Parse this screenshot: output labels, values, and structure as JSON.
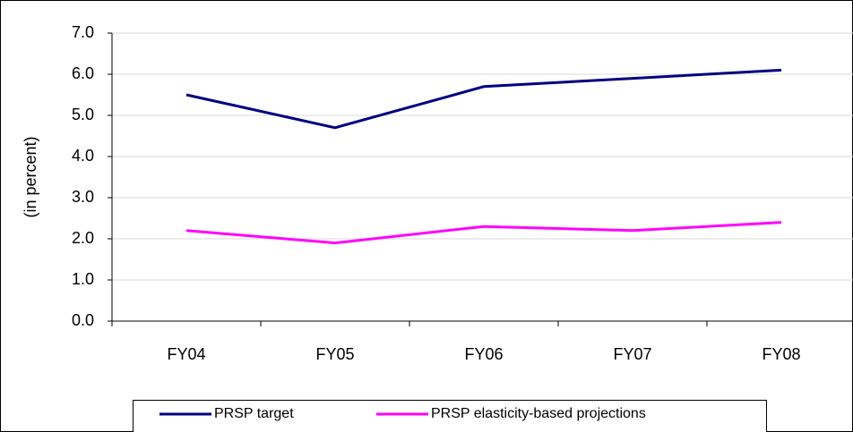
{
  "chart_data": {
    "type": "line",
    "y_label": "(in percent)",
    "categories": [
      "FY04",
      "FY05",
      "FY06",
      "FY07",
      "FY08"
    ],
    "series": [
      {
        "name": "PRSP target",
        "color": "#000080",
        "values": [
          5.5,
          4.7,
          5.7,
          5.9,
          6.1
        ]
      },
      {
        "name": "PRSP elasticity-based projections",
        "color": "#ff00ff",
        "values": [
          2.2,
          1.9,
          2.3,
          2.2,
          2.4
        ]
      }
    ],
    "ylim": [
      0,
      7
    ],
    "yticks": [
      {
        "value": 0,
        "label": "0.0"
      },
      {
        "value": 1,
        "label": "1.0"
      },
      {
        "value": 2,
        "label": "2.0"
      },
      {
        "value": 3,
        "label": "3.0"
      },
      {
        "value": 4,
        "label": "4.0"
      },
      {
        "value": 5,
        "label": "5.0"
      },
      {
        "value": 6,
        "label": "6.0"
      },
      {
        "value": 7,
        "label": "7.0"
      }
    ],
    "grid": true,
    "legend": "bottom"
  }
}
